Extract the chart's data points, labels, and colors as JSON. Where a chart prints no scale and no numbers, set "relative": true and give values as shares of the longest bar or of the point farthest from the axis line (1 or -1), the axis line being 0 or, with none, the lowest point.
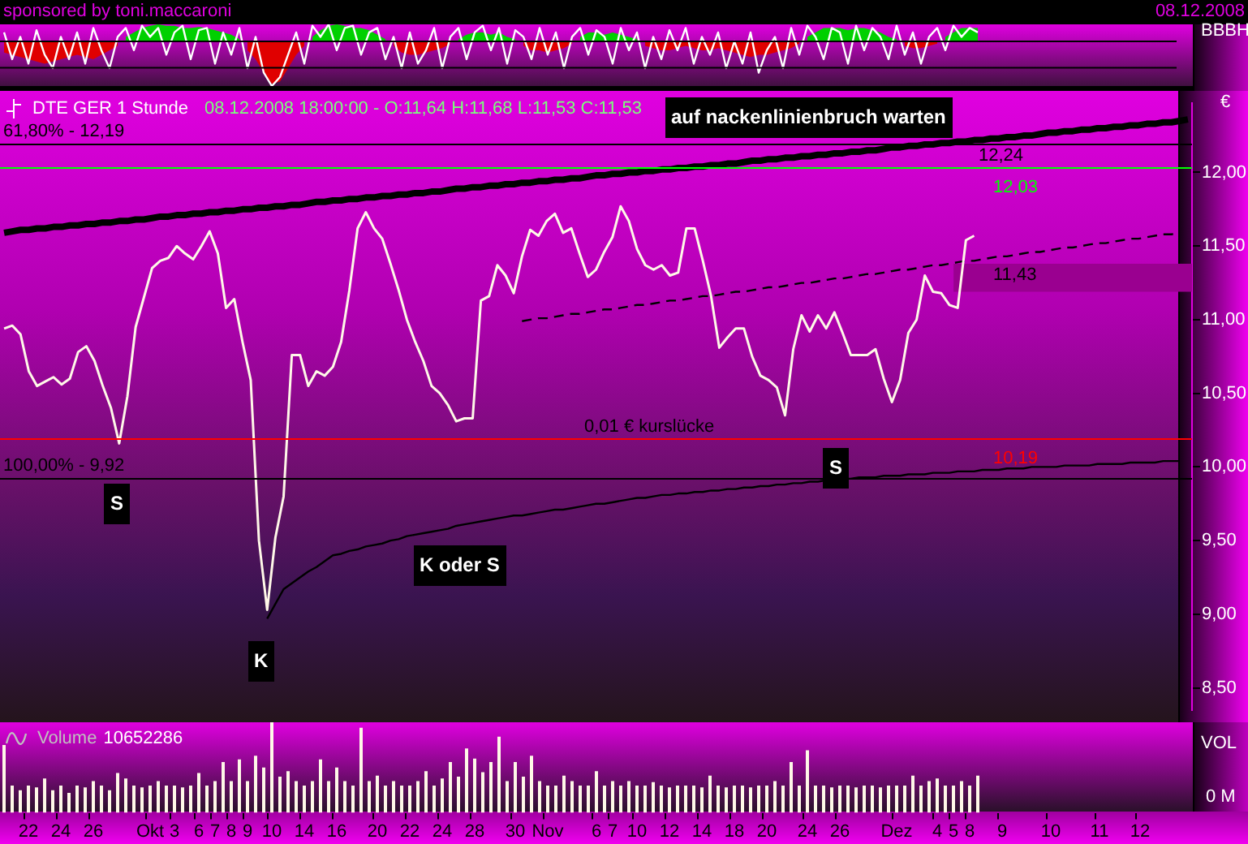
{
  "chart_data": [
    {
      "type": "line",
      "relative": true,
      "ylabel": "BBBH",
      "tick_labels": false,
      "annotations": [
        "sponsored by toni.maccaroni",
        "08.12.2008"
      ],
      "ref_lines": [
        {
          "axis": "y",
          "value": 0,
          "color": "#000000"
        },
        {
          "axis": "y",
          "value": -0.59,
          "color": "#000000"
        }
      ],
      "categories": [
        null,
        null,
        null,
        null,
        null,
        null,
        null,
        null,
        null,
        null,
        null,
        null,
        null,
        null,
        null,
        null,
        null,
        null,
        null,
        null,
        null,
        null,
        null,
        null,
        null,
        null,
        null,
        null,
        null,
        null,
        null,
        null,
        null,
        null,
        null,
        null,
        null,
        null,
        null,
        null,
        null,
        null,
        null,
        null,
        null,
        null,
        null,
        null,
        null,
        null,
        null,
        null,
        null,
        null,
        null,
        null,
        null,
        null,
        null,
        null,
        null,
        null,
        null,
        null,
        null,
        null,
        null,
        null,
        null,
        null,
        null,
        null,
        null,
        null,
        null,
        null,
        null,
        null,
        null,
        null,
        null,
        null,
        null,
        null,
        null,
        null,
        null,
        null,
        null,
        null,
        null,
        null,
        null,
        null,
        null,
        null,
        null,
        null,
        null,
        null,
        null,
        null,
        null,
        null,
        null,
        null,
        null,
        null,
        null,
        null,
        null,
        null,
        null,
        null,
        null,
        null,
        null,
        null,
        null,
        null,
        null,
        null,
        null,
        null,
        null,
        null,
        null,
        null,
        null,
        null,
        null,
        null,
        null,
        null,
        null,
        null,
        null,
        null,
        null,
        null,
        null,
        null,
        null,
        null,
        null
      ],
      "series": [
        {
          "type": "line",
          "color": "#ffffff",
          "values": [
            0.2,
            -0.4,
            0.1,
            -0.5,
            0.25,
            -0.3,
            -0.6,
            0.1,
            -0.4,
            0.2,
            -0.5,
            0.3,
            -0.2,
            -0.6,
            0.1,
            0.3,
            -0.2,
            0.35,
            0.1,
            0.3,
            -0.3,
            0.2,
            0.35,
            -0.4,
            0.25,
            0.3,
            -0.5,
            0.2,
            -0.3,
            0.3,
            -0.6,
            0.1,
            -0.7,
            -1,
            -0.8,
            -0.3,
            0.2,
            -0.5,
            0.35,
            0.1,
            0.38,
            -0.2,
            0.3,
            0.35,
            -0.3,
            0.2,
            0.3,
            -0.4,
            0.1,
            -0.6,
            0.2,
            -0.5,
            -0.2,
            0.3,
            -0.6,
            0.1,
            0.3,
            -0.4,
            0.2,
            0.35,
            -0.2,
            0.3,
            -0.5,
            0.25,
            0.1,
            -0.4,
            0.3,
            -0.3,
            0.2,
            -0.6,
            0.1,
            0.3,
            -0.3,
            0.25,
            0.1,
            -0.5,
            0.3,
            -0.2,
            0.2,
            -0.6,
            0.1,
            -0.4,
            0.25,
            -0.2,
            0.3,
            -0.5,
            0.1,
            -0.3,
            0.2,
            -0.6,
            0,
            -0.5,
            0.2,
            -0.7,
            -0.2,
            0.1,
            -0.6,
            0.3,
            -0.3,
            0.35,
            0.1,
            -0.4,
            0.3,
            0.2,
            -0.5,
            0.35,
            -0.2,
            0.3,
            0.1,
            -0.4,
            0.35,
            -0.3,
            0.2,
            -0.5,
            0.1,
            0.3,
            -0.2,
            0.35,
            0.1,
            0.3,
            0.2,
            null,
            null,
            null,
            null,
            null,
            null,
            null,
            null,
            null,
            null,
            null,
            null,
            null,
            null,
            null,
            null,
            null,
            null,
            null,
            null,
            null,
            null,
            null,
            null
          ]
        },
        {
          "type": "area",
          "color": "#00d000",
          "values": [
            null,
            null,
            null,
            null,
            null,
            null,
            null,
            null,
            null,
            null,
            null,
            null,
            null,
            null,
            null,
            0.1,
            0.2,
            0.3,
            0.35,
            0.38,
            0.35,
            0.35,
            0.3,
            0.3,
            0.32,
            0.3,
            0.25,
            0.2,
            0.15,
            0.05,
            null,
            null,
            null,
            null,
            null,
            null,
            null,
            null,
            0.1,
            0.25,
            0.35,
            0.38,
            0.35,
            0.3,
            0.3,
            0.25,
            0.15,
            0.05,
            null,
            null,
            null,
            null,
            null,
            null,
            null,
            null,
            0.05,
            0.15,
            0.2,
            0.2,
            0.15,
            0.2,
            0.1,
            0.05,
            null,
            null,
            null,
            null,
            null,
            null,
            null,
            0.1,
            0.2,
            0.2,
            0.15,
            0.2,
            0.15,
            0.1,
            0.05,
            null,
            null,
            null,
            null,
            null,
            null,
            null,
            null,
            null,
            null,
            null,
            null,
            null,
            null,
            null,
            null,
            null,
            null,
            null,
            null,
            0.1,
            0.2,
            0.3,
            0.3,
            0.3,
            0.25,
            0.3,
            0.3,
            0.25,
            0.2,
            0.1,
            0.05,
            null,
            null,
            null,
            null,
            null,
            0.1,
            0.2,
            0.3,
            0.3,
            0.3,
            null,
            null,
            null,
            null,
            null,
            null,
            null,
            null,
            null,
            null,
            null,
            null,
            null,
            null,
            null,
            null,
            null,
            null,
            null,
            null,
            null,
            null,
            null,
            null
          ]
        },
        {
          "type": "area",
          "color": "#e00000",
          "values": [
            -0.25,
            -0.3,
            -0.35,
            -0.4,
            -0.45,
            -0.5,
            -0.45,
            -0.4,
            -0.35,
            -0.3,
            -0.35,
            -0.4,
            -0.3,
            -0.2,
            -0.1,
            null,
            null,
            null,
            null,
            null,
            null,
            null,
            null,
            null,
            null,
            null,
            null,
            null,
            null,
            null,
            -0.2,
            -0.4,
            -0.7,
            -0.95,
            -0.9,
            -0.6,
            -0.3,
            -0.1,
            null,
            null,
            null,
            null,
            null,
            null,
            null,
            null,
            null,
            null,
            -0.1,
            -0.25,
            -0.3,
            -0.3,
            -0.25,
            -0.2,
            -0.15,
            -0.05,
            null,
            null,
            null,
            null,
            null,
            null,
            null,
            null,
            -0.1,
            -0.2,
            -0.2,
            -0.25,
            -0.2,
            -0.15,
            -0.05,
            null,
            null,
            null,
            null,
            null,
            null,
            null,
            null,
            -0.1,
            -0.15,
            -0.2,
            -0.2,
            -0.15,
            -0.1,
            -0.15,
            -0.2,
            -0.2,
            -0.15,
            -0.2,
            -0.25,
            -0.3,
            -0.35,
            -0.3,
            -0.3,
            -0.25,
            -0.2,
            -0.15,
            -0.05,
            null,
            null,
            null,
            null,
            null,
            null,
            null,
            null,
            null,
            null,
            null,
            null,
            -0.1,
            -0.15,
            -0.15,
            -0.1,
            -0.05,
            null,
            null,
            null,
            null,
            null,
            null,
            null,
            null,
            null,
            null,
            null,
            null,
            null,
            null,
            null,
            null,
            null,
            null,
            null,
            null,
            null,
            null,
            null,
            null,
            null,
            null,
            null,
            null,
            null
          ]
        }
      ]
    },
    {
      "type": "line",
      "title": "DTE GER 1 Stunde",
      "subtitle": "08.12.2008 18:00:00 - O:11,64 H:11,68 L:11,53 C:11,53",
      "ylabel": "€",
      "tick_labels": "y",
      "ylim": [
        8.35,
        12.47
      ],
      "yticks": [
        {
          "value": 8.5,
          "label": "8,50"
        },
        {
          "value": 9,
          "label": "9,00"
        },
        {
          "value": 9.5,
          "label": "9,50"
        },
        {
          "value": 10,
          "label": "10,00"
        },
        {
          "value": 10.5,
          "label": "10,50"
        },
        {
          "value": 11,
          "label": "11,00"
        },
        {
          "value": 11.5,
          "label": "11,50"
        },
        {
          "value": 12,
          "label": "12,00"
        }
      ],
      "ref_lines": [
        {
          "axis": "y",
          "value": 12.19,
          "color": "#000000"
        },
        {
          "axis": "y",
          "value": 12.03,
          "label": "12,03",
          "color": "#00ff00"
        },
        {
          "axis": "y",
          "value": 10.19,
          "label": "10,19",
          "color": "#ff0000"
        },
        {
          "axis": "y",
          "value": 9.92,
          "color": "#000000"
        }
      ],
      "bands": [
        {
          "axis": "y",
          "from": 11.19,
          "to": 11.38,
          "label": "11,43",
          "color": "#9a0090"
        }
      ],
      "annotations": [
        "auf nackenlinienbruch warten",
        "S",
        "K",
        "K oder S",
        "S",
        "12,24",
        "0,01 € kurslücke",
        {
          "text": "61,80% - 12,19",
          "y": 12.19
        },
        {
          "text": "100,00% - 9,92",
          "y": 9.92
        }
      ],
      "categories": [
        null,
        null,
        null,
        null,
        null,
        null,
        null,
        null,
        null,
        null,
        null,
        null,
        null,
        null,
        null,
        null,
        null,
        null,
        null,
        null,
        null,
        null,
        null,
        null,
        null,
        null,
        null,
        null,
        null,
        null,
        null,
        null,
        null,
        null,
        null,
        null,
        null,
        null,
        null,
        null,
        null,
        null,
        null,
        null,
        null,
        null,
        null,
        null,
        null,
        null,
        null,
        null,
        null,
        null,
        null,
        null,
        null,
        null,
        null,
        null,
        null,
        null,
        null,
        null,
        null,
        null,
        null,
        null,
        null,
        null,
        null,
        null,
        null,
        null,
        null,
        null,
        null,
        null,
        null,
        null,
        null,
        null,
        null,
        null,
        null,
        null,
        null,
        null,
        null,
        null,
        null,
        null,
        null,
        null,
        null,
        null,
        null,
        null,
        null,
        null,
        null,
        null,
        null,
        null,
        null,
        null,
        null,
        null,
        null,
        null,
        null,
        null,
        null,
        null,
        null,
        null,
        null,
        null,
        null,
        null,
        null,
        null,
        null,
        null,
        null,
        null,
        null,
        null,
        null,
        null,
        null,
        null,
        null,
        null,
        null,
        null,
        null,
        null,
        null,
        null,
        null,
        null,
        null,
        null,
        null
      ],
      "series": [
        {
          "type": "line",
          "color": "#fff8e8",
          "values": [
            10.94,
            10.96,
            10.9,
            10.65,
            10.55,
            10.58,
            10.61,
            10.56,
            10.6,
            10.78,
            10.82,
            10.72,
            10.55,
            10.4,
            10.16,
            10.48,
            10.95,
            11.15,
            11.35,
            11.4,
            11.42,
            11.5,
            11.45,
            11.41,
            11.5,
            11.6,
            11.45,
            11.08,
            11.14,
            10.85,
            10.59,
            9.5,
            9.03,
            9.52,
            9.8,
            10.76,
            10.76,
            10.55,
            10.65,
            10.62,
            10.68,
            10.85,
            11.2,
            11.62,
            11.73,
            11.62,
            11.55,
            11.38,
            11.2,
            11,
            10.85,
            10.72,
            10.55,
            10.5,
            10.42,
            10.31,
            10.33,
            10.33,
            11.13,
            11.16,
            11.37,
            11.3,
            11.18,
            11.43,
            11.61,
            11.57,
            11.67,
            11.72,
            11.59,
            11.62,
            11.45,
            11.29,
            11.34,
            11.46,
            11.56,
            11.77,
            11.67,
            11.48,
            11.37,
            11.34,
            11.37,
            11.3,
            11.32,
            11.62,
            11.62,
            11.4,
            11.16,
            10.81,
            10.88,
            10.94,
            10.94,
            10.75,
            10.62,
            10.59,
            10.54,
            10.35,
            10.8,
            11.03,
            10.92,
            11.03,
            10.94,
            11.05,
            10.91,
            10.76,
            10.76,
            10.76,
            10.8,
            10.6,
            10.44,
            10.59,
            10.91,
            11,
            11.3,
            11.19,
            11.18,
            11.1,
            11.08,
            11.54,
            11.57,
            null,
            null,
            null,
            null,
            null,
            null,
            null,
            null,
            null,
            null,
            null,
            null,
            null,
            null,
            null,
            null,
            null,
            null,
            null,
            null,
            null,
            null,
            null,
            null,
            null,
            null
          ]
        },
        {
          "type": "line",
          "color": "#000000",
          "values": [
            11.59,
            11.6,
            11.61,
            11.61,
            11.62,
            11.62,
            11.63,
            11.63,
            11.64,
            11.64,
            11.65,
            11.65,
            11.66,
            11.66,
            11.67,
            11.67,
            11.68,
            11.68,
            11.69,
            11.7,
            11.7,
            11.71,
            11.71,
            11.72,
            11.72,
            11.73,
            11.73,
            11.74,
            11.74,
            11.75,
            11.75,
            11.76,
            11.76,
            11.77,
            11.77,
            11.78,
            11.78,
            11.79,
            11.8,
            11.8,
            11.81,
            11.81,
            11.82,
            11.82,
            11.83,
            11.83,
            11.84,
            11.84,
            11.85,
            11.85,
            11.86,
            11.86,
            11.87,
            11.87,
            11.88,
            11.89,
            11.89,
            11.9,
            11.9,
            11.91,
            11.91,
            11.92,
            11.92,
            11.93,
            11.93,
            11.94,
            11.94,
            11.95,
            11.95,
            11.96,
            11.96,
            11.97,
            11.98,
            11.98,
            11.99,
            11.99,
            12,
            12,
            12.01,
            12.01,
            12.02,
            12.02,
            12.03,
            12.03,
            12.04,
            12.04,
            12.05,
            12.05,
            12.06,
            12.06,
            12.07,
            12.08,
            12.08,
            12.09,
            12.09,
            12.1,
            12.1,
            12.11,
            12.11,
            12.12,
            12.12,
            12.13,
            12.13,
            12.14,
            12.14,
            12.15,
            12.15,
            12.16,
            12.17,
            12.17,
            12.18,
            12.18,
            12.19,
            12.19,
            12.2,
            12.2,
            12.21,
            12.21,
            12.22,
            12.22,
            12.23,
            12.23,
            12.24,
            12.24,
            12.25,
            12.25,
            12.26,
            12.27,
            12.27,
            12.28,
            12.28,
            12.29,
            12.29,
            12.3,
            12.3,
            12.31,
            12.31,
            12.32,
            12.32,
            12.33,
            12.33,
            12.34,
            12.34,
            12.35,
            12.36
          ]
        },
        {
          "type": "line",
          "color": "#000000",
          "line_style": "dashed",
          "values": [
            null,
            null,
            null,
            null,
            null,
            null,
            null,
            null,
            null,
            null,
            null,
            null,
            null,
            null,
            null,
            null,
            null,
            null,
            null,
            null,
            null,
            null,
            null,
            null,
            null,
            null,
            null,
            null,
            null,
            null,
            null,
            null,
            null,
            null,
            null,
            null,
            null,
            null,
            null,
            null,
            null,
            null,
            null,
            null,
            null,
            null,
            null,
            null,
            null,
            null,
            null,
            null,
            null,
            null,
            null,
            null,
            null,
            null,
            null,
            null,
            null,
            null,
            null,
            10.99,
            11,
            11.01,
            11.01,
            11.02,
            11.03,
            11.04,
            11.04,
            11.05,
            11.06,
            11.07,
            11.07,
            11.08,
            11.09,
            11.1,
            11.1,
            11.11,
            11.12,
            11.13,
            11.13,
            11.14,
            11.15,
            11.16,
            11.16,
            11.17,
            11.18,
            11.19,
            11.19,
            11.2,
            11.21,
            11.22,
            11.22,
            11.23,
            11.24,
            11.25,
            11.25,
            11.26,
            11.27,
            11.28,
            11.28,
            11.29,
            11.3,
            11.31,
            11.31,
            11.32,
            11.33,
            11.34,
            11.34,
            11.35,
            11.36,
            11.37,
            11.37,
            11.38,
            11.39,
            11.4,
            11.4,
            11.41,
            11.42,
            11.43,
            11.43,
            11.44,
            11.45,
            11.46,
            11.46,
            11.47,
            11.48,
            11.49,
            11.49,
            11.5,
            11.51,
            11.52,
            11.52,
            11.53,
            11.54,
            11.55,
            11.55,
            11.56,
            11.57,
            11.58,
            11.58,
            11.59,
            null
          ]
        },
        {
          "type": "line",
          "color": "#000000",
          "values": [
            null,
            null,
            null,
            null,
            null,
            null,
            null,
            null,
            null,
            null,
            null,
            null,
            null,
            null,
            null,
            null,
            null,
            null,
            null,
            null,
            null,
            null,
            null,
            null,
            null,
            null,
            null,
            null,
            null,
            null,
            null,
            null,
            8.97,
            9.07,
            9.17,
            9.21,
            9.25,
            9.29,
            9.32,
            9.36,
            9.4,
            9.41,
            9.43,
            9.44,
            9.46,
            9.47,
            9.48,
            9.5,
            9.51,
            9.53,
            9.54,
            9.55,
            9.56,
            9.57,
            9.58,
            9.6,
            9.61,
            9.62,
            9.63,
            9.64,
            9.65,
            9.66,
            9.67,
            9.67,
            9.68,
            9.69,
            9.7,
            9.71,
            9.71,
            9.72,
            9.73,
            9.74,
            9.75,
            9.75,
            9.76,
            9.77,
            9.78,
            9.79,
            9.79,
            9.8,
            9.81,
            9.81,
            9.82,
            9.82,
            9.83,
            9.83,
            9.84,
            9.84,
            9.85,
            9.85,
            9.86,
            9.86,
            9.87,
            9.87,
            9.88,
            9.88,
            9.89,
            9.89,
            9.9,
            9.9,
            9.91,
            9.91,
            9.92,
            9.92,
            9.93,
            9.93,
            9.93,
            9.94,
            9.94,
            9.94,
            9.95,
            9.95,
            9.95,
            9.96,
            9.96,
            9.96,
            9.97,
            9.97,
            9.97,
            9.98,
            9.98,
            9.98,
            9.99,
            9.99,
            9.99,
            10,
            10,
            10,
            10,
            10.01,
            10.01,
            10.01,
            10.01,
            10.02,
            10.02,
            10.02,
            10.02,
            10.03,
            10.03,
            10.03,
            10.03,
            10.04,
            10.04,
            10.04,
            null
          ]
        }
      ]
    },
    {
      "type": "bar",
      "relative": true,
      "title": "Volume",
      "subtitle": "10652286",
      "ylabel": "VOL",
      "annotations": [
        "0 M"
      ],
      "color": "#fff8e8",
      "categories": [
        null,
        null,
        null,
        "22",
        null,
        null,
        null,
        "24",
        null,
        null,
        null,
        "26",
        null,
        null,
        null,
        null,
        null,
        null,
        "Okt",
        null,
        null,
        "3",
        null,
        null,
        "6",
        null,
        "7",
        null,
        "8",
        null,
        "9",
        null,
        null,
        "10",
        null,
        null,
        null,
        "14",
        null,
        null,
        null,
        "16",
        null,
        null,
        null,
        null,
        "20",
        null,
        null,
        null,
        "22",
        null,
        null,
        null,
        "24",
        null,
        null,
        null,
        "28",
        null,
        null,
        null,
        null,
        "30",
        null,
        null,
        null,
        "Nov",
        null,
        null,
        null,
        null,
        null,
        "6",
        null,
        "7",
        null,
        null,
        "10",
        null,
        null,
        null,
        "12",
        null,
        null,
        null,
        "14",
        null,
        null,
        null,
        "18",
        null,
        null,
        null,
        "20",
        null,
        null,
        null,
        null,
        "24",
        null,
        null,
        null,
        "26",
        null,
        null,
        null,
        null,
        null,
        null,
        "Dez",
        null,
        null,
        null,
        null,
        "4",
        null,
        "5",
        null,
        "8",
        null,
        null,
        null,
        "9",
        null,
        null,
        null,
        null,
        null,
        "10",
        null,
        null,
        null,
        null,
        null,
        "11",
        null,
        null,
        null,
        null,
        "12",
        null,
        null,
        null,
        null
      ],
      "values": [
        0.75,
        0.3,
        0.25,
        0.3,
        0.28,
        0.38,
        0.25,
        0.3,
        0.22,
        0.3,
        0.28,
        0.35,
        0.3,
        0.25,
        0.44,
        0.38,
        0.3,
        0.28,
        0.3,
        0.35,
        0.3,
        0.3,
        0.28,
        0.3,
        0.44,
        0.3,
        0.35,
        0.56,
        0.35,
        0.59,
        0.35,
        0.63,
        0.5,
        1,
        0.4,
        0.46,
        0.35,
        0.3,
        0.35,
        0.59,
        0.35,
        0.5,
        0.35,
        0.3,
        0.94,
        0.35,
        0.41,
        0.3,
        0.35,
        0.3,
        0.3,
        0.35,
        0.46,
        0.3,
        0.38,
        0.56,
        0.4,
        0.71,
        0.6,
        0.45,
        0.56,
        0.84,
        0.35,
        0.56,
        0.4,
        0.63,
        0.35,
        0.3,
        0.3,
        0.41,
        0.35,
        0.3,
        0.3,
        0.46,
        0.3,
        0.35,
        0.3,
        0.35,
        0.3,
        0.3,
        0.34,
        0.3,
        0.28,
        0.3,
        0.3,
        0.3,
        0.28,
        0.41,
        0.3,
        0.28,
        0.3,
        0.3,
        0.28,
        0.3,
        0.3,
        0.35,
        0.3,
        0.56,
        0.3,
        0.69,
        0.3,
        0.3,
        0.28,
        0.3,
        0.3,
        0.28,
        0.3,
        0.3,
        0.28,
        0.3,
        0.3,
        0.3,
        0.41,
        0.3,
        0.35,
        0.38,
        0.3,
        0.3,
        0.35,
        0.3,
        0.41,
        null,
        null,
        null,
        null,
        null,
        null,
        null,
        null,
        null,
        null,
        null,
        null,
        null,
        null,
        null,
        null,
        null,
        null,
        null,
        null,
        null,
        null,
        null,
        null
      ]
    }
  ]
}
